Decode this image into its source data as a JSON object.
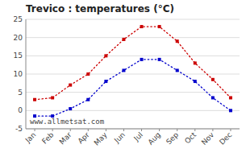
{
  "chart_data": {
    "type": "line",
    "title": "Trevico : temperatures (°C)",
    "categories": [
      "Jan",
      "Feb",
      "Mar",
      "Apr",
      "May",
      "Jun",
      "Jul",
      "Aug",
      "Sep",
      "Oct",
      "Nov",
      "Dec"
    ],
    "series": [
      {
        "color": "#cc0000",
        "marker": "square",
        "line_style": "dotted",
        "values": [
          3,
          3.5,
          7,
          10,
          15,
          19.5,
          23,
          23,
          19,
          13,
          8.5,
          3.5
        ]
      },
      {
        "color": "#0000cc",
        "marker": "square",
        "line_style": "dotted",
        "values": [
          -1.5,
          -1.5,
          0.5,
          3,
          8,
          11,
          14,
          14,
          11,
          8,
          3.5,
          0
        ]
      }
    ],
    "ylim": [
      -5,
      25
    ],
    "yticks": [
      -5,
      0,
      5,
      10,
      15,
      20,
      25
    ],
    "grid": true,
    "annotations": [
      "www.allmetsat.com"
    ]
  }
}
